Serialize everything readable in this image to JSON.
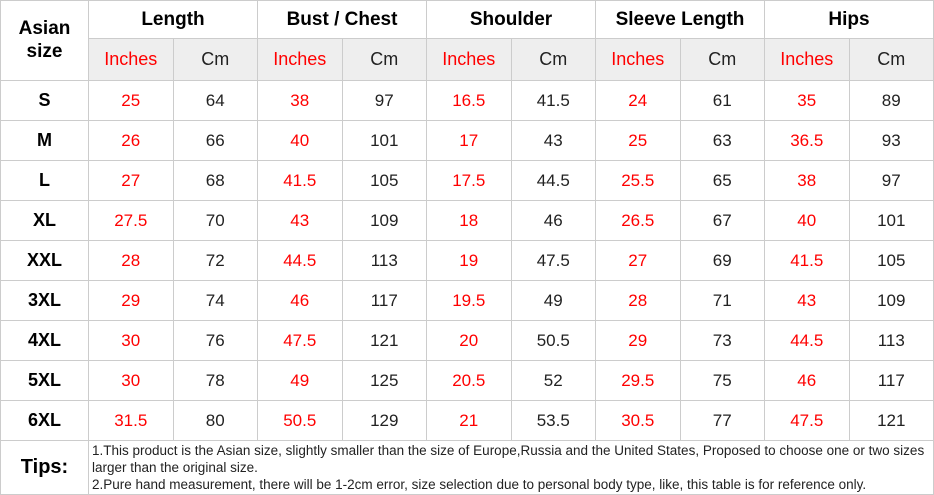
{
  "colors": {
    "accent_red": "#ff0000",
    "text_dark": "#222222",
    "header_text": "#000000",
    "unit_row_bg": "#eeeeee",
    "border": "#cccccc",
    "background": "#ffffff"
  },
  "chart_data": {
    "type": "table",
    "corner_header": "Asian size",
    "column_groups": [
      "Length",
      "Bust / Chest",
      "Shoulder",
      "Sleeve Length",
      "Hips"
    ],
    "unit_columns": [
      "Inches",
      "Cm"
    ],
    "rows": [
      {
        "size": "S",
        "values": [
          25,
          64,
          38,
          97,
          16.5,
          41.5,
          24,
          61,
          35,
          89
        ]
      },
      {
        "size": "M",
        "values": [
          26,
          66,
          40,
          101,
          17,
          43,
          25,
          63,
          36.5,
          93
        ]
      },
      {
        "size": "L",
        "values": [
          27,
          68,
          41.5,
          105,
          17.5,
          44.5,
          25.5,
          65,
          38,
          97
        ]
      },
      {
        "size": "XL",
        "values": [
          27.5,
          70,
          43,
          109,
          18,
          46,
          26.5,
          67,
          40,
          101
        ]
      },
      {
        "size": "XXL",
        "values": [
          28,
          72,
          44.5,
          113,
          19,
          47.5,
          27,
          69,
          41.5,
          105
        ]
      },
      {
        "size": "3XL",
        "values": [
          29,
          74,
          46,
          117,
          19.5,
          49,
          28,
          71,
          43,
          109
        ]
      },
      {
        "size": "4XL",
        "values": [
          30,
          76,
          47.5,
          121,
          20,
          50.5,
          29,
          73,
          44.5,
          113
        ]
      },
      {
        "size": "5XL",
        "values": [
          30,
          78,
          49,
          125,
          20.5,
          52,
          29.5,
          75,
          46,
          117
        ]
      },
      {
        "size": "6XL",
        "values": [
          31.5,
          80,
          50.5,
          129,
          21,
          53.5,
          30.5,
          77,
          47.5,
          121
        ]
      }
    ],
    "notes_label": "Tips:",
    "notes": [
      "1.This product is the Asian size, slightly smaller than the size of Europe,Russia and the United States, Proposed to choose one or two sizes larger than the original size.",
      "2.Pure hand measurement, there will be 1-2cm error, size selection due to personal body type, like, this table is for reference only."
    ]
  }
}
